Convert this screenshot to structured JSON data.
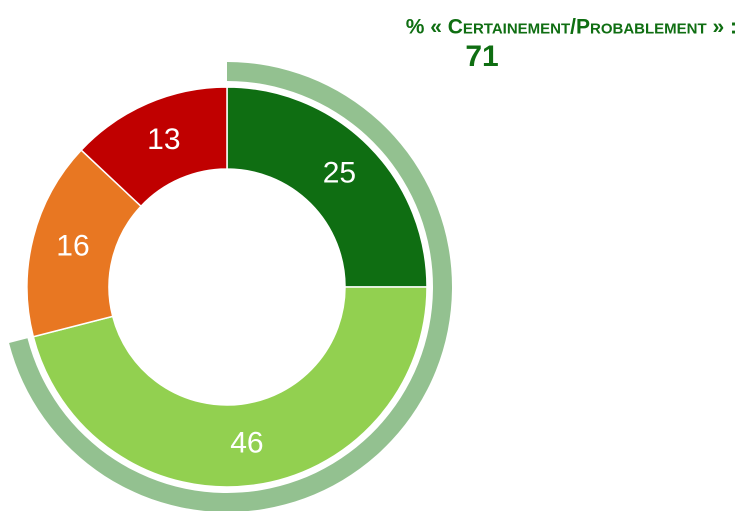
{
  "chart_data": {
    "type": "donut",
    "categories": [
      null,
      null,
      null,
      null
    ],
    "values": [
      25,
      46,
      16,
      13
    ],
    "colors": [
      "#0f6e12",
      "#92d050",
      "#e87722",
      "#c00000"
    ],
    "annotation": {
      "text": "% « Certainement/Probablement » :",
      "value": 71,
      "color": "#0f6e12",
      "ring_color": "#93c190"
    }
  }
}
